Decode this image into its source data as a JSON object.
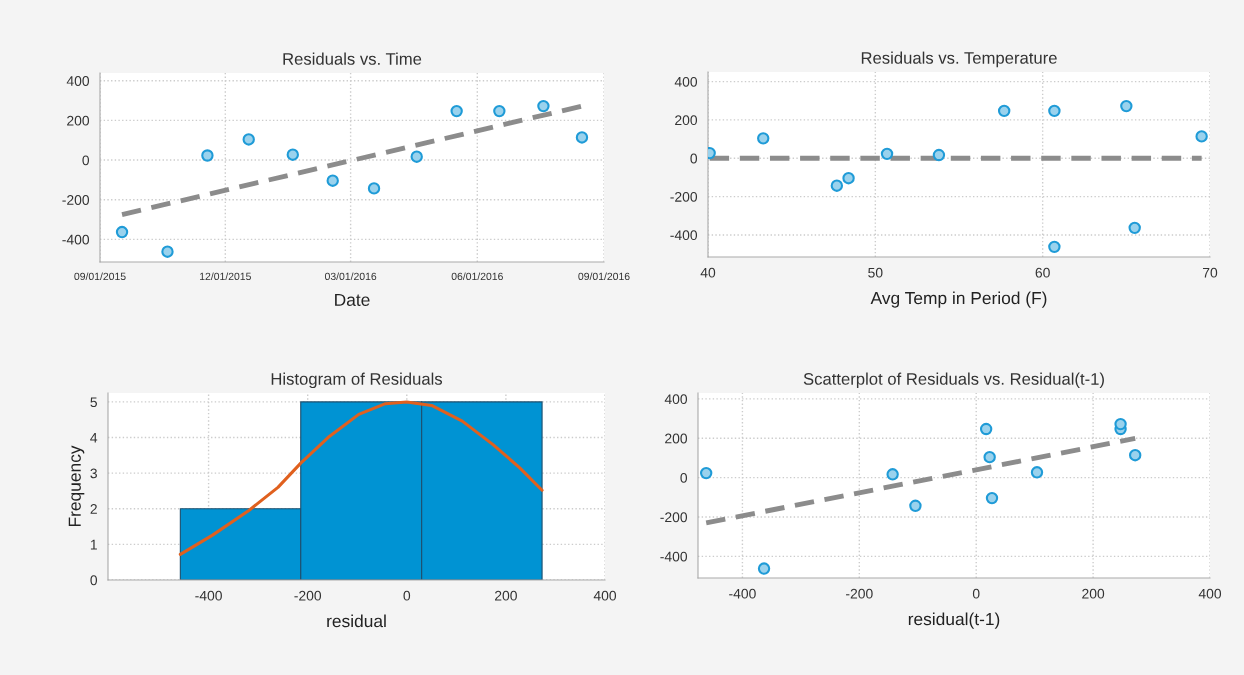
{
  "chart_data": [
    {
      "type": "scatter",
      "title": "Residuals vs. Time",
      "xlabel": "Date",
      "xlim": [
        "2015-09-01",
        "2016-09-01"
      ],
      "ylim": [
        -514,
        439
      ],
      "xticks": [
        {
          "value": "2015-09-01",
          "label": "09/01/2015"
        },
        {
          "value": "2015-12-01",
          "label": "12/01/2015"
        },
        {
          "value": "2016-03-01",
          "label": "03/01/2016"
        },
        {
          "value": "2016-06-01",
          "label": "06/01/2016"
        },
        {
          "value": "2016-09-01",
          "label": "09/01/2016"
        }
      ],
      "yticks": [
        -400,
        -200,
        0,
        200,
        400
      ],
      "grid": true,
      "series": [
        {
          "type": "scatter",
          "marker": "circle",
          "color": "#1f9bd7",
          "x": [
            "2015-09-17",
            "2015-10-20",
            "2015-11-18",
            "2015-12-18",
            "2016-01-19",
            "2016-02-17",
            "2016-03-18",
            "2016-04-18",
            "2016-05-17",
            "2016-06-17",
            "2016-07-19",
            "2016-08-16"
          ],
          "values": [
            -363,
            -462,
            23,
            104,
            27,
            -104,
            -143,
            17,
            247,
            247,
            272,
            114
          ]
        },
        {
          "type": "line",
          "line_style": "dashed",
          "color": "#8c8c8c",
          "x": [
            "2015-09-17",
            "2016-08-16"
          ],
          "values": [
            -275,
            272
          ]
        }
      ]
    },
    {
      "type": "scatter",
      "title": "Residuals vs. Temperature",
      "xlabel": "Avg Temp in Period (F)",
      "xlim": [
        40,
        70
      ],
      "ylim": [
        -515,
        450
      ],
      "xticks": [
        40,
        50,
        60,
        70
      ],
      "yticks": [
        -400,
        -200,
        0,
        200,
        400
      ],
      "grid": true,
      "series": [
        {
          "type": "scatter",
          "marker": "circle",
          "color": "#1f9bd7",
          "x": [
            65.5,
            60.7,
            50.7,
            43.3,
            40.1,
            48.4,
            47.7,
            53.8,
            57.7,
            60.7,
            65.0,
            69.5
          ],
          "values": [
            -363,
            -462,
            23,
            104,
            27,
            -104,
            -143,
            17,
            247,
            247,
            272,
            114
          ]
        },
        {
          "type": "line",
          "line_style": "dashed",
          "color": "#8c8c8c",
          "x": [
            40.1,
            69.5
          ],
          "values": [
            0,
            0
          ]
        }
      ]
    },
    {
      "type": "histogram",
      "title": "Histogram of Residuals",
      "xlabel": "residual",
      "ylabel": "Frequency",
      "xlim": [
        -603,
        400
      ],
      "ylim": [
        0,
        5.25
      ],
      "xticks": [
        -400,
        -200,
        0,
        200,
        400
      ],
      "yticks": [
        0,
        1,
        2,
        3,
        4,
        5
      ],
      "grid": true,
      "bins": [
        -457,
        -214,
        30,
        273
      ],
      "values": [
        2,
        5,
        5
      ],
      "color": "#0093d3",
      "series": [
        {
          "type": "line",
          "line_style": "solid",
          "color": "#e0601e",
          "x": [
            -457,
            -392,
            -318,
            -260,
            -214,
            -159,
            -97,
            -43,
            0,
            50,
            112,
            174,
            228,
            273
          ],
          "values": [
            0.72,
            1.26,
            1.96,
            2.6,
            3.28,
            4.0,
            4.65,
            4.95,
            5.0,
            4.9,
            4.46,
            3.8,
            3.15,
            2.52
          ]
        }
      ]
    },
    {
      "type": "scatter",
      "title": "Scatterplot of Residuals vs. Residual(t-1)",
      "xlabel": "residual(t-1)",
      "xlim": [
        -476,
        400
      ],
      "ylim": [
        -510,
        430
      ],
      "xticks": [
        -400,
        -200,
        0,
        200,
        400
      ],
      "yticks": [
        -400,
        -200,
        0,
        200,
        400
      ],
      "grid": true,
      "series": [
        {
          "type": "scatter",
          "marker": "circle",
          "color": "#1f9bd7",
          "x": [
            -363,
            -462,
            23,
            104,
            27,
            -104,
            -143,
            17,
            247,
            247,
            272
          ],
          "values": [
            -462,
            23,
            104,
            27,
            -104,
            -143,
            17,
            247,
            247,
            272,
            114
          ]
        },
        {
          "type": "line",
          "line_style": "dashed",
          "color": "#8c8c8c",
          "x": [
            -462,
            272
          ],
          "values": [
            -230,
            199
          ]
        }
      ]
    }
  ]
}
